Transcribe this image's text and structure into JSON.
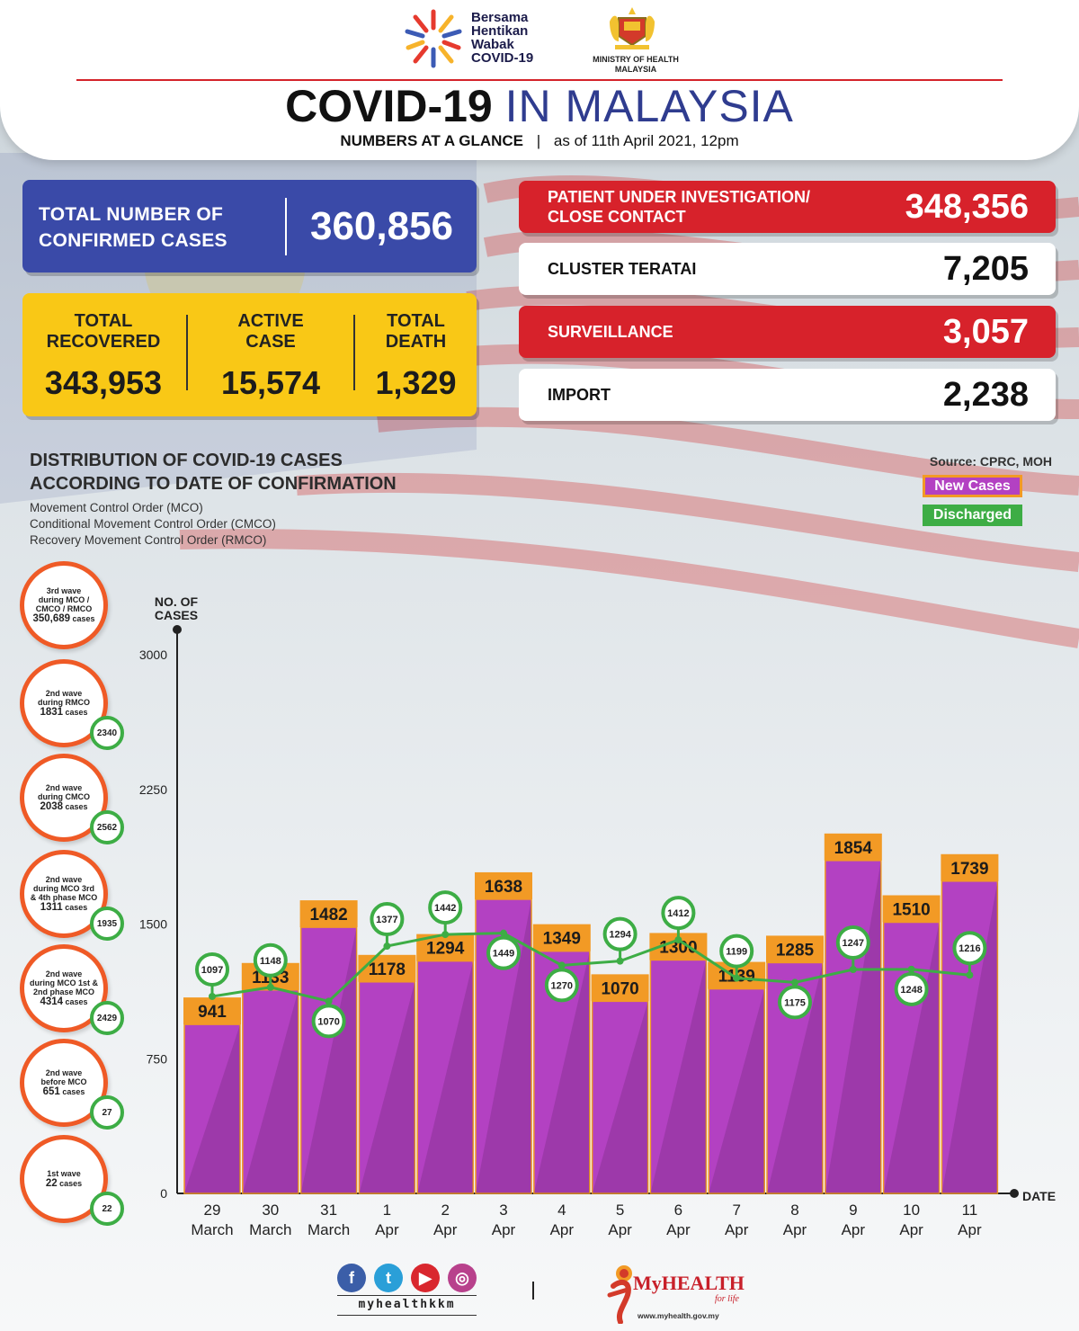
{
  "header": {
    "campaign_lines": [
      "Bersama",
      "Hentikan",
      "Wabak",
      "COVID-19"
    ],
    "ministry_lines": [
      "MINISTRY OF HEALTH",
      "MALAYSIA"
    ],
    "title_part1": "COVID-19",
    "title_part2": "IN MALAYSIA",
    "subtitle_bold": "NUMBERS AT A GLANCE",
    "subtitle_sep": "|",
    "subtitle_date": "as of 11th April 2021, 12pm"
  },
  "confirmed": {
    "label_line1": "TOTAL NUMBER OF",
    "label_line2": "CONFIRMED CASES",
    "value": "360,856"
  },
  "summary": [
    {
      "label_line1": "TOTAL",
      "label_line2": "RECOVERED",
      "value": "343,953"
    },
    {
      "label_line1": "ACTIVE",
      "label_line2": "CASE",
      "value": "15,574"
    },
    {
      "label_line1": "TOTAL",
      "label_line2": "DEATH",
      "value": "1,329"
    }
  ],
  "breakdown": [
    {
      "label_line1": "PATIENT UNDER INVESTIGATION/",
      "label_line2": "CLOSE CONTACT",
      "value": "348,356"
    },
    {
      "label_line1": "CLUSTER TERATAI",
      "label_line2": "",
      "value": "7,205"
    },
    {
      "label_line1": "SURVEILLANCE",
      "label_line2": "",
      "value": "3,057"
    },
    {
      "label_line1": "IMPORT",
      "label_line2": "",
      "value": "2,238"
    }
  ],
  "distribution": {
    "title_line1": "DISTRIBUTION OF COVID-19 CASES",
    "title_line2": "ACCORDING TO DATE OF CONFIRMATION",
    "notes": [
      "Movement Control Order (MCO)",
      "Conditional Movement Control Order (CMCO)",
      "Recovery Movement Control Order (RMCO)"
    ],
    "source": "Source: CPRC, MOH",
    "legend_new": "New Cases",
    "legend_discharged": "Discharged"
  },
  "waves": [
    {
      "lines": [
        "3rd wave",
        "during MCO /",
        "CMCO / RMCO"
      ],
      "number": "350,689",
      "unit": "cases",
      "discharged": ""
    },
    {
      "lines": [
        "2nd wave",
        "during RMCO"
      ],
      "number": "1831",
      "unit": "cases",
      "discharged": "2340"
    },
    {
      "lines": [
        "2nd wave",
        "during CMCO"
      ],
      "number": "2038",
      "unit": "cases",
      "discharged": "2562"
    },
    {
      "lines": [
        "2nd wave",
        "during MCO 3rd",
        "& 4th phase MCO"
      ],
      "number": "1311",
      "unit": "cases",
      "discharged": "1935"
    },
    {
      "lines": [
        "2nd wave",
        "during MCO 1st &",
        "2nd phase MCO"
      ],
      "number": "4314",
      "unit": "cases",
      "discharged": "2429"
    },
    {
      "lines": [
        "2nd wave",
        "before MCO"
      ],
      "number": "651",
      "unit": "cases",
      "discharged": "27"
    },
    {
      "lines": [
        "1st wave"
      ],
      "number": "22",
      "unit": "cases",
      "discharged": "22"
    }
  ],
  "chart_data": {
    "type": "bar",
    "ylabel_line1": "NO. OF",
    "ylabel_line2": "CASES",
    "xlabel": "DATE",
    "ylim": [
      0,
      3000
    ],
    "yticks": [
      0,
      750,
      1500,
      2250,
      3000
    ],
    "categories": [
      "29 March",
      "30 March",
      "31 March",
      "1 Apr",
      "2 Apr",
      "3 Apr",
      "4 Apr",
      "5 Apr",
      "6 Apr",
      "7 Apr",
      "8 Apr",
      "9 Apr",
      "10 Apr",
      "11 Apr"
    ],
    "category_lines": [
      [
        "29",
        "March"
      ],
      [
        "30",
        "March"
      ],
      [
        "31",
        "March"
      ],
      [
        "1",
        "Apr"
      ],
      [
        "2",
        "Apr"
      ],
      [
        "3",
        "Apr"
      ],
      [
        "4",
        "Apr"
      ],
      [
        "5",
        "Apr"
      ],
      [
        "6",
        "Apr"
      ],
      [
        "7",
        "Apr"
      ],
      [
        "8",
        "Apr"
      ],
      [
        "9",
        "Apr"
      ],
      [
        "10",
        "Apr"
      ],
      [
        "11",
        "Apr"
      ]
    ],
    "series": [
      {
        "name": "New Cases",
        "type": "bar",
        "color": "#b341c2",
        "label_color": "#f29a25",
        "values": [
          941,
          1133,
          1482,
          1178,
          1294,
          1638,
          1349,
          1070,
          1300,
          1139,
          1285,
          1854,
          1510,
          1739
        ]
      },
      {
        "name": "Discharged",
        "type": "line",
        "color": "#3dad45",
        "values": [
          1097,
          1148,
          1070,
          1377,
          1442,
          1449,
          1270,
          1294,
          1412,
          1199,
          1175,
          1247,
          1248,
          1216
        ]
      }
    ]
  },
  "footer": {
    "social_icons": [
      "facebook-icon",
      "twitter-icon",
      "youtube-icon",
      "instagram-icon"
    ],
    "handle": "myhealthkkm",
    "separator": "|",
    "brand_my": "My",
    "brand_health": "HEALTH",
    "brand_tagline": "for life",
    "url": "www.myhealth.gov.my"
  }
}
